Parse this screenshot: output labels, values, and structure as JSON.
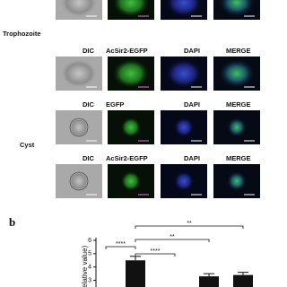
{
  "figure": {
    "row_labels": [
      "Trophozoite",
      "Cyst"
    ],
    "headers": [
      [
        "DIC",
        "AcSir2-EGFP",
        "DAPI",
        "MERGE"
      ],
      [
        "DIC",
        "EGFP",
        "DAPI",
        "MERGE"
      ],
      [
        "DIC",
        "AcSir2-EGFP",
        "DAPI",
        "MERGE"
      ]
    ],
    "panel_label": "b"
  },
  "chart_data": {
    "type": "bar",
    "ylabel": "(relative value)",
    "categories": [
      null,
      null,
      null
    ],
    "values": [
      4.5,
      3.3,
      3.4
    ],
    "errors": [
      0.3,
      0.2,
      0.2
    ],
    "color": "#111111",
    "ylim": [
      2.5,
      6.2
    ],
    "yticks": [
      3,
      4,
      5,
      6
    ],
    "annotations": [
      "****",
      "****",
      "**",
      "**"
    ]
  }
}
